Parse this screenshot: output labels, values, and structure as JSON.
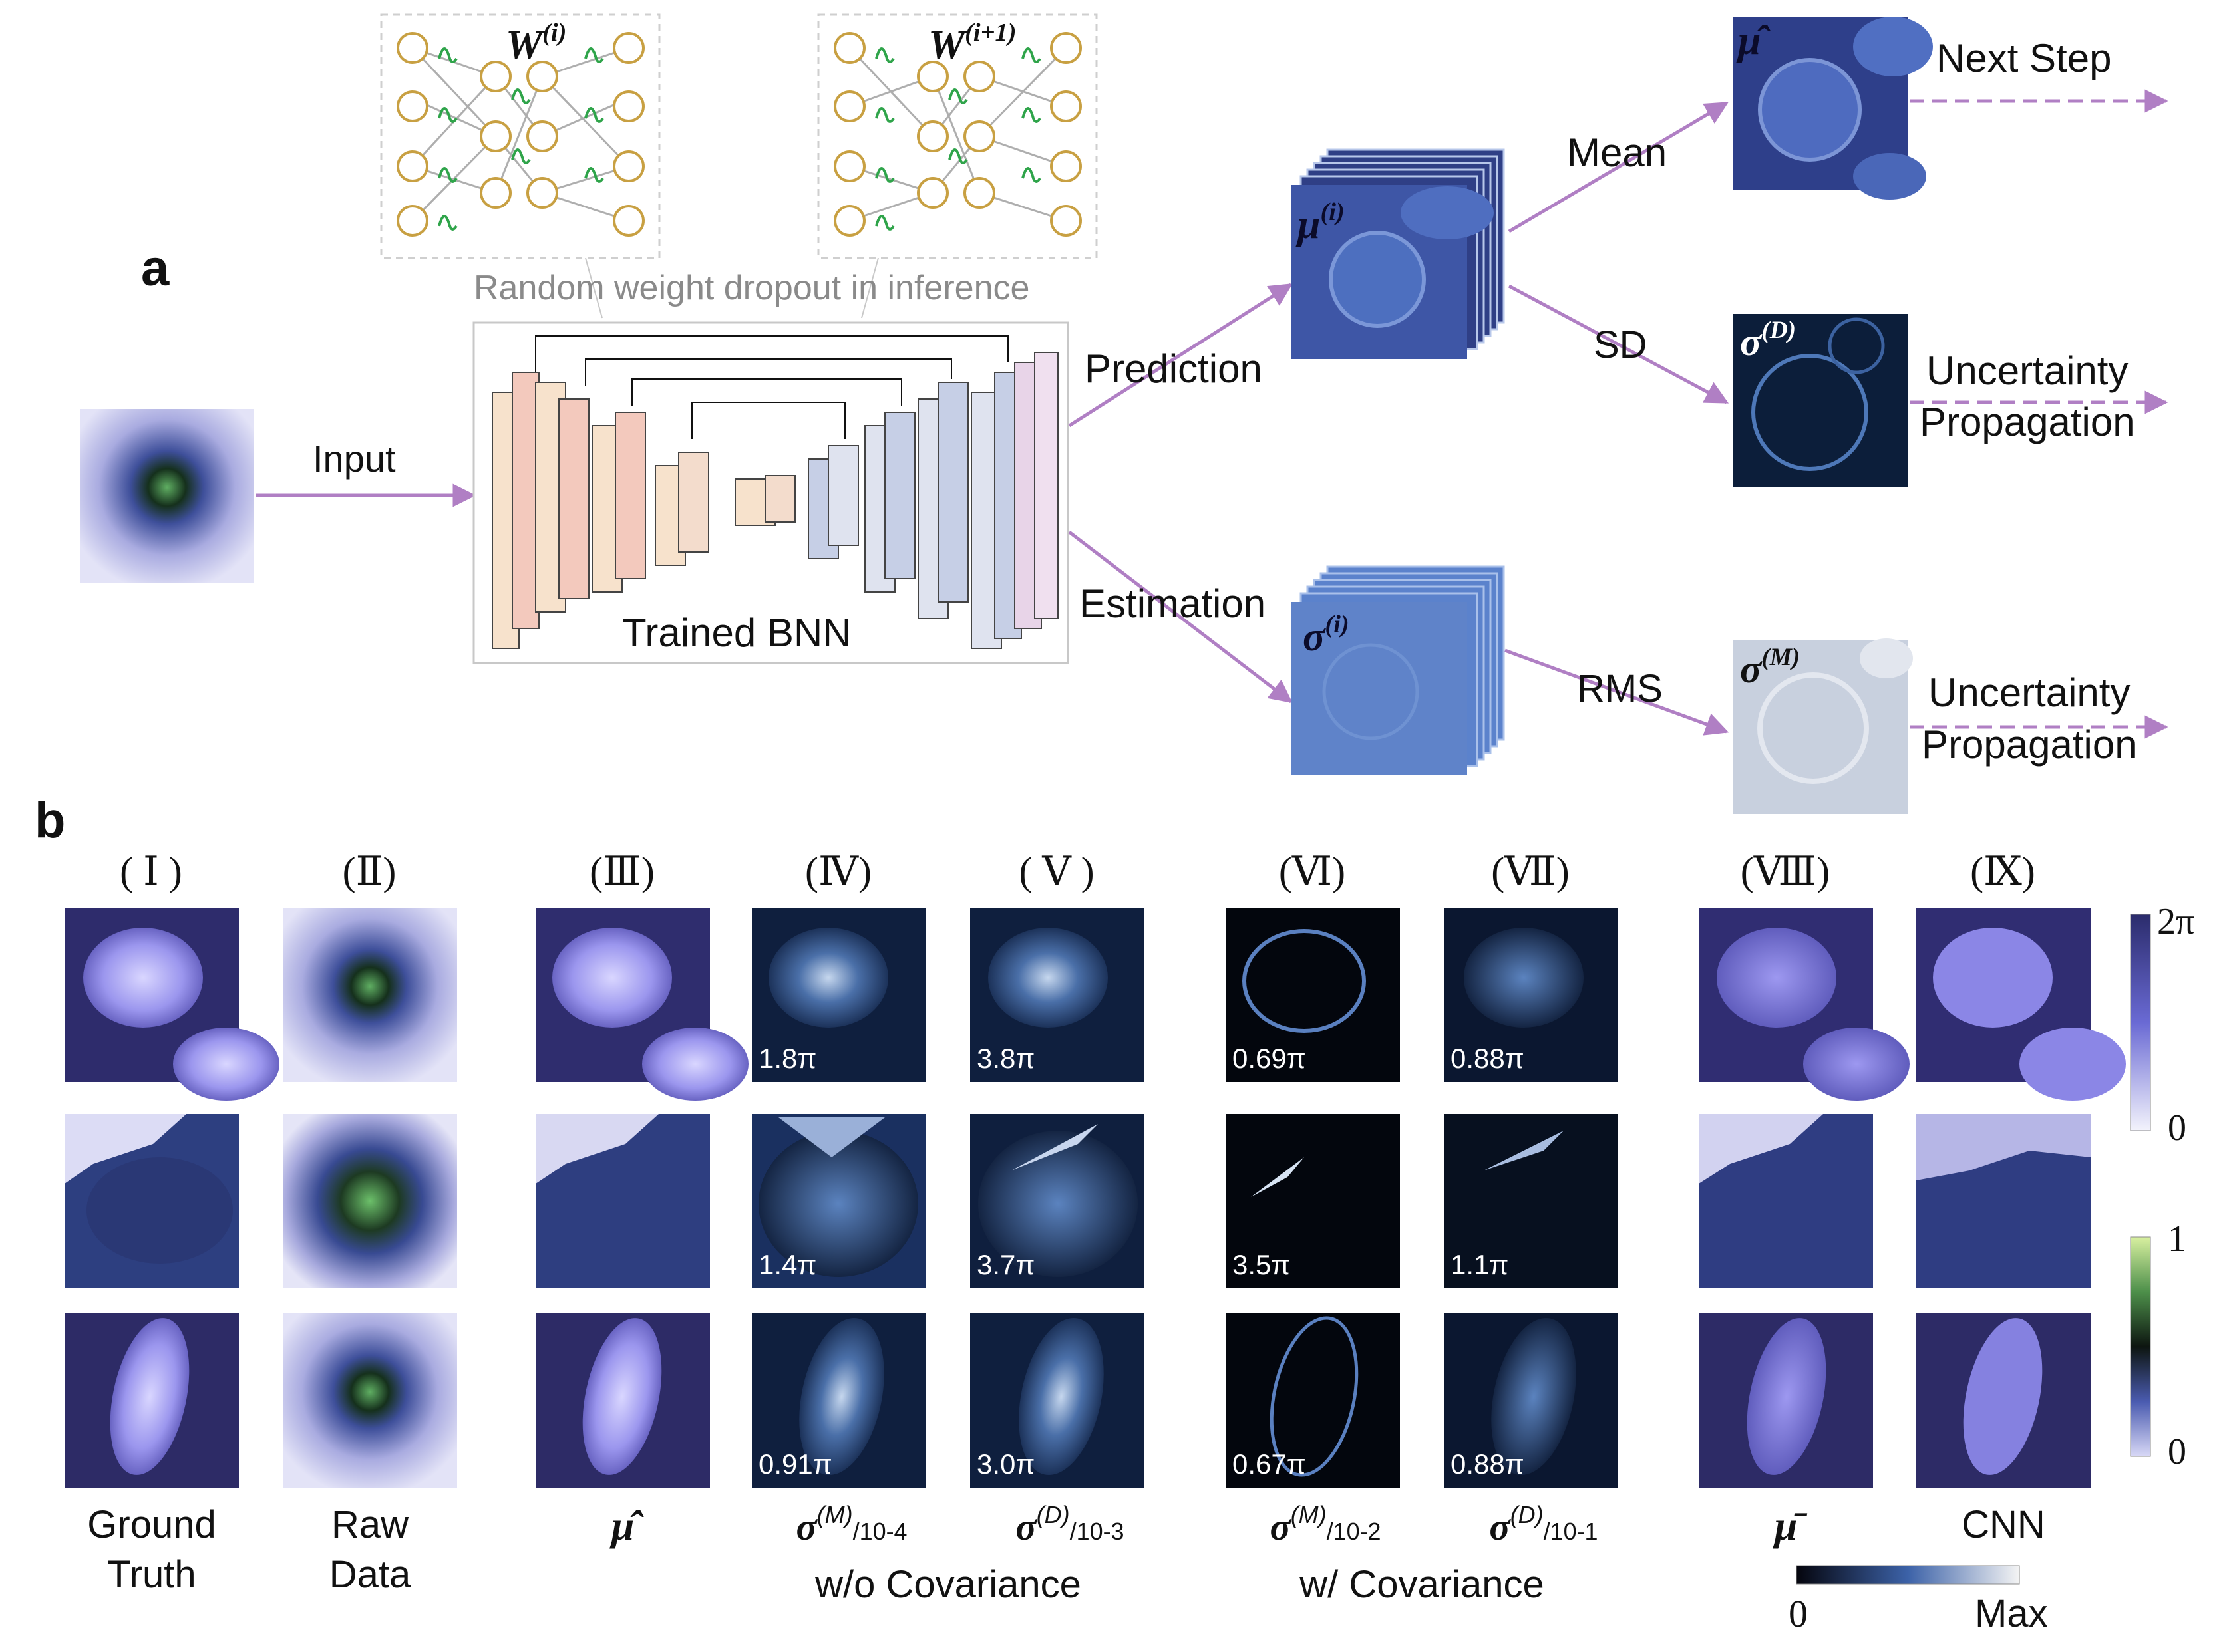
{
  "panel_a": {
    "letter": "a",
    "input_label": "Input",
    "dropout_caption": "Random weight dropout in inference",
    "w_i": "W",
    "w_i_sup": "(i)",
    "w_next": "W",
    "w_next_sup": "(i+1)",
    "network_label": "Trained BNN",
    "prediction_label": "Prediction",
    "estimation_label": "Estimation",
    "mu_i_sym": "μ",
    "mu_i_sup": "(i)",
    "sigma_i_sym": "σ",
    "sigma_i_sup": "(i)",
    "mean_label": "Mean",
    "sd_label": "SD",
    "rms_label": "RMS",
    "mu_hat_sym": "μ̂",
    "sigma_d_sym": "σ",
    "sigma_d_sup": "(D)",
    "sigma_m_sym": "σ",
    "sigma_m_sup": "(M)",
    "next_step": "Next Step",
    "uncertainty_1a": "Uncertainty",
    "uncertainty_1b": "Propagation",
    "uncertainty_2a": "Uncertainty",
    "uncertainty_2b": "Propagation"
  },
  "panel_b": {
    "letter": "b",
    "columns": [
      "( Ⅰ )",
      "(Ⅱ)",
      "(Ⅲ)",
      "(Ⅳ)",
      "( Ⅴ )",
      "(Ⅵ)",
      "(Ⅶ)",
      "(Ⅷ)",
      "(Ⅸ)"
    ],
    "values": {
      "col4": [
        "1.8π",
        "1.4π",
        "0.91π"
      ],
      "col5": [
        "3.8π",
        "3.7π",
        "3.0π"
      ],
      "col6": [
        "0.69π",
        "3.5π",
        "0.67π"
      ],
      "col7": [
        "0.88π",
        "1.1π",
        "0.88π"
      ]
    },
    "captions": {
      "c1a": "Ground",
      "c1b": "Truth",
      "c2a": "Raw",
      "c2b": "Data",
      "c3": "μ̂",
      "c4_sym": "σ",
      "c4_sup": "(M)",
      "c4_sub": "/10-4",
      "c5_sym": "σ",
      "c5_sup": "(D)",
      "c5_sub": "/10-3",
      "c6_sym": "σ",
      "c6_sup": "(M)",
      "c6_sub": "/10-2",
      "c7_sym": "σ",
      "c7_sup": "(D)",
      "c7_sub": "/10-1",
      "c8": "μ̄",
      "c9": "CNN"
    },
    "group_wo": "w/o Covariance",
    "group_w": "w/ Covariance",
    "colorbar_phase": {
      "top": "2π",
      "bottom": "0"
    },
    "colorbar_intensity": {
      "top": "1",
      "bottom": "0"
    },
    "colorbar_unc": {
      "left": "0",
      "right": "Max"
    }
  },
  "colors": {
    "arrow": "#b07fc4",
    "phase_dark": "#2e2f6e",
    "phase_light": "#eeeefa",
    "unc_dark": "#050510",
    "unc_light": "#f4f4f4"
  }
}
